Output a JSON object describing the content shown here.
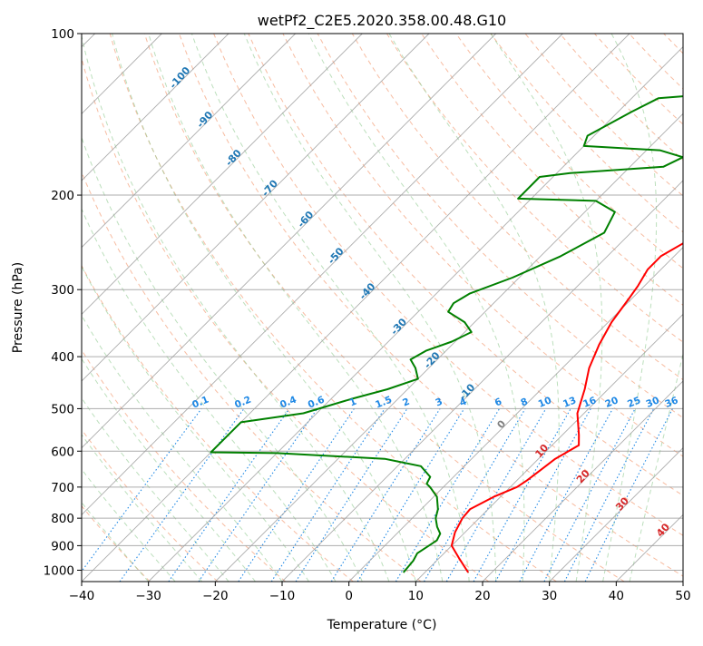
{
  "chart_data": {
    "type": "line",
    "title": "wetPf2_C2E5.2020.358.00.48.G10",
    "xlabel": "Temperature (°C)",
    "ylabel": "Pressure (hPa)",
    "xlim": [
      -40,
      50
    ],
    "ylim": [
      1050,
      100
    ],
    "y_scale": "log",
    "x_ticks": [
      -40,
      -30,
      -20,
      -10,
      0,
      10,
      20,
      30,
      40,
      50
    ],
    "y_ticks": [
      100,
      200,
      300,
      400,
      500,
      600,
      700,
      800,
      900,
      1000
    ],
    "grid": true,
    "dry_adiabat_labels": [
      "-100",
      "-90",
      "-80",
      "-70",
      "-60",
      "-50",
      "-40",
      "-30",
      "-20",
      "-10",
      "0",
      "10",
      "20",
      "30",
      "40"
    ],
    "mixing_ratio_labels": [
      "0.1",
      "0.2",
      "0.4",
      "0.6",
      "1",
      "1.5",
      "2",
      "3",
      "4",
      "6",
      "8",
      "10",
      "13",
      "16",
      "20",
      "25",
      "30",
      "36"
    ],
    "colors": {
      "temperature": "#ff0000",
      "dewpoint": "#008000",
      "dry_adiabat": "#f4a582",
      "moist_adiabat": "#8fc98f",
      "mixing_ratio": "#1e88e5",
      "isotherm": "#9e9e9e",
      "dry_adiabat_label": "#1f77b4",
      "moist_adiabat_label": "#d62728"
    },
    "series": [
      {
        "points": [
          [
            16.5,
            1010
          ],
          [
            13.0,
            950
          ],
          [
            10.0,
            900
          ],
          [
            8.5,
            850
          ],
          [
            7.5,
            800
          ],
          [
            7.3,
            770
          ],
          [
            9.0,
            730
          ],
          [
            11.0,
            700
          ],
          [
            11.5,
            680
          ],
          [
            12.0,
            650
          ],
          [
            12.5,
            620
          ],
          [
            14.0,
            585
          ],
          [
            12.5,
            560
          ],
          [
            9.0,
            510
          ],
          [
            6.5,
            460
          ],
          [
            4.0,
            420
          ],
          [
            2.0,
            380
          ],
          [
            0.5,
            345
          ],
          [
            -0.5,
            310
          ],
          [
            -1.0,
            295
          ],
          [
            -2.0,
            275
          ],
          [
            -2.0,
            260
          ],
          [
            -0.5,
            245
          ],
          [
            2.0,
            230
          ],
          [
            5.0,
            215
          ],
          [
            8.5,
            200
          ],
          [
            10.0,
            185
          ],
          [
            12.0,
            170
          ],
          [
            13.5,
            155
          ],
          [
            14.5,
            140
          ],
          [
            14.8,
            128
          ],
          [
            15.0,
            120
          ],
          [
            16.0,
            112
          ],
          [
            17.0,
            104
          ],
          [
            17.5,
            100
          ]
        ]
      },
      {
        "points": [
          [
            6.8,
            1010
          ],
          [
            6.5,
            960
          ],
          [
            6.0,
            930
          ],
          [
            6.5,
            905
          ],
          [
            7.0,
            880
          ],
          [
            6.5,
            855
          ],
          [
            5.0,
            830
          ],
          [
            3.5,
            800
          ],
          [
            2.5,
            770
          ],
          [
            0.5,
            730
          ],
          [
            -2.0,
            700
          ],
          [
            -3.0,
            690
          ],
          [
            -3.5,
            670
          ],
          [
            -6.5,
            640
          ],
          [
            -13.0,
            620
          ],
          [
            -30.0,
            605
          ],
          [
            -40.0,
            603
          ],
          [
            -40.0,
            530
          ],
          [
            -32.0,
            510
          ],
          [
            -27.0,
            480
          ],
          [
            -23.0,
            460
          ],
          [
            -20.0,
            440
          ],
          [
            -22.0,
            420
          ],
          [
            -24.0,
            405
          ],
          [
            -23.0,
            390
          ],
          [
            -20.5,
            375
          ],
          [
            -19.0,
            360
          ],
          [
            -21.5,
            345
          ],
          [
            -25.5,
            330
          ],
          [
            -26.0,
            318
          ],
          [
            -25.0,
            305
          ],
          [
            -21.0,
            285
          ],
          [
            -17.0,
            260
          ],
          [
            -14.0,
            235
          ],
          [
            -15.5,
            215
          ],
          [
            -20.0,
            205
          ],
          [
            -32.0,
            203
          ],
          [
            -32.0,
            185
          ],
          [
            -28.0,
            182
          ],
          [
            -15.0,
            177
          ],
          [
            -13.5,
            170
          ],
          [
            -18.0,
            165
          ],
          [
            -30.0,
            162
          ],
          [
            -31.0,
            155
          ],
          [
            -28.0,
            140
          ],
          [
            -26.0,
            132
          ],
          [
            -20.0,
            130
          ],
          [
            -14.0,
            127
          ],
          [
            -10.0,
            120
          ],
          [
            -7.0,
            110
          ],
          [
            -2.0,
            102
          ],
          [
            0.0,
            100
          ]
        ]
      }
    ]
  }
}
